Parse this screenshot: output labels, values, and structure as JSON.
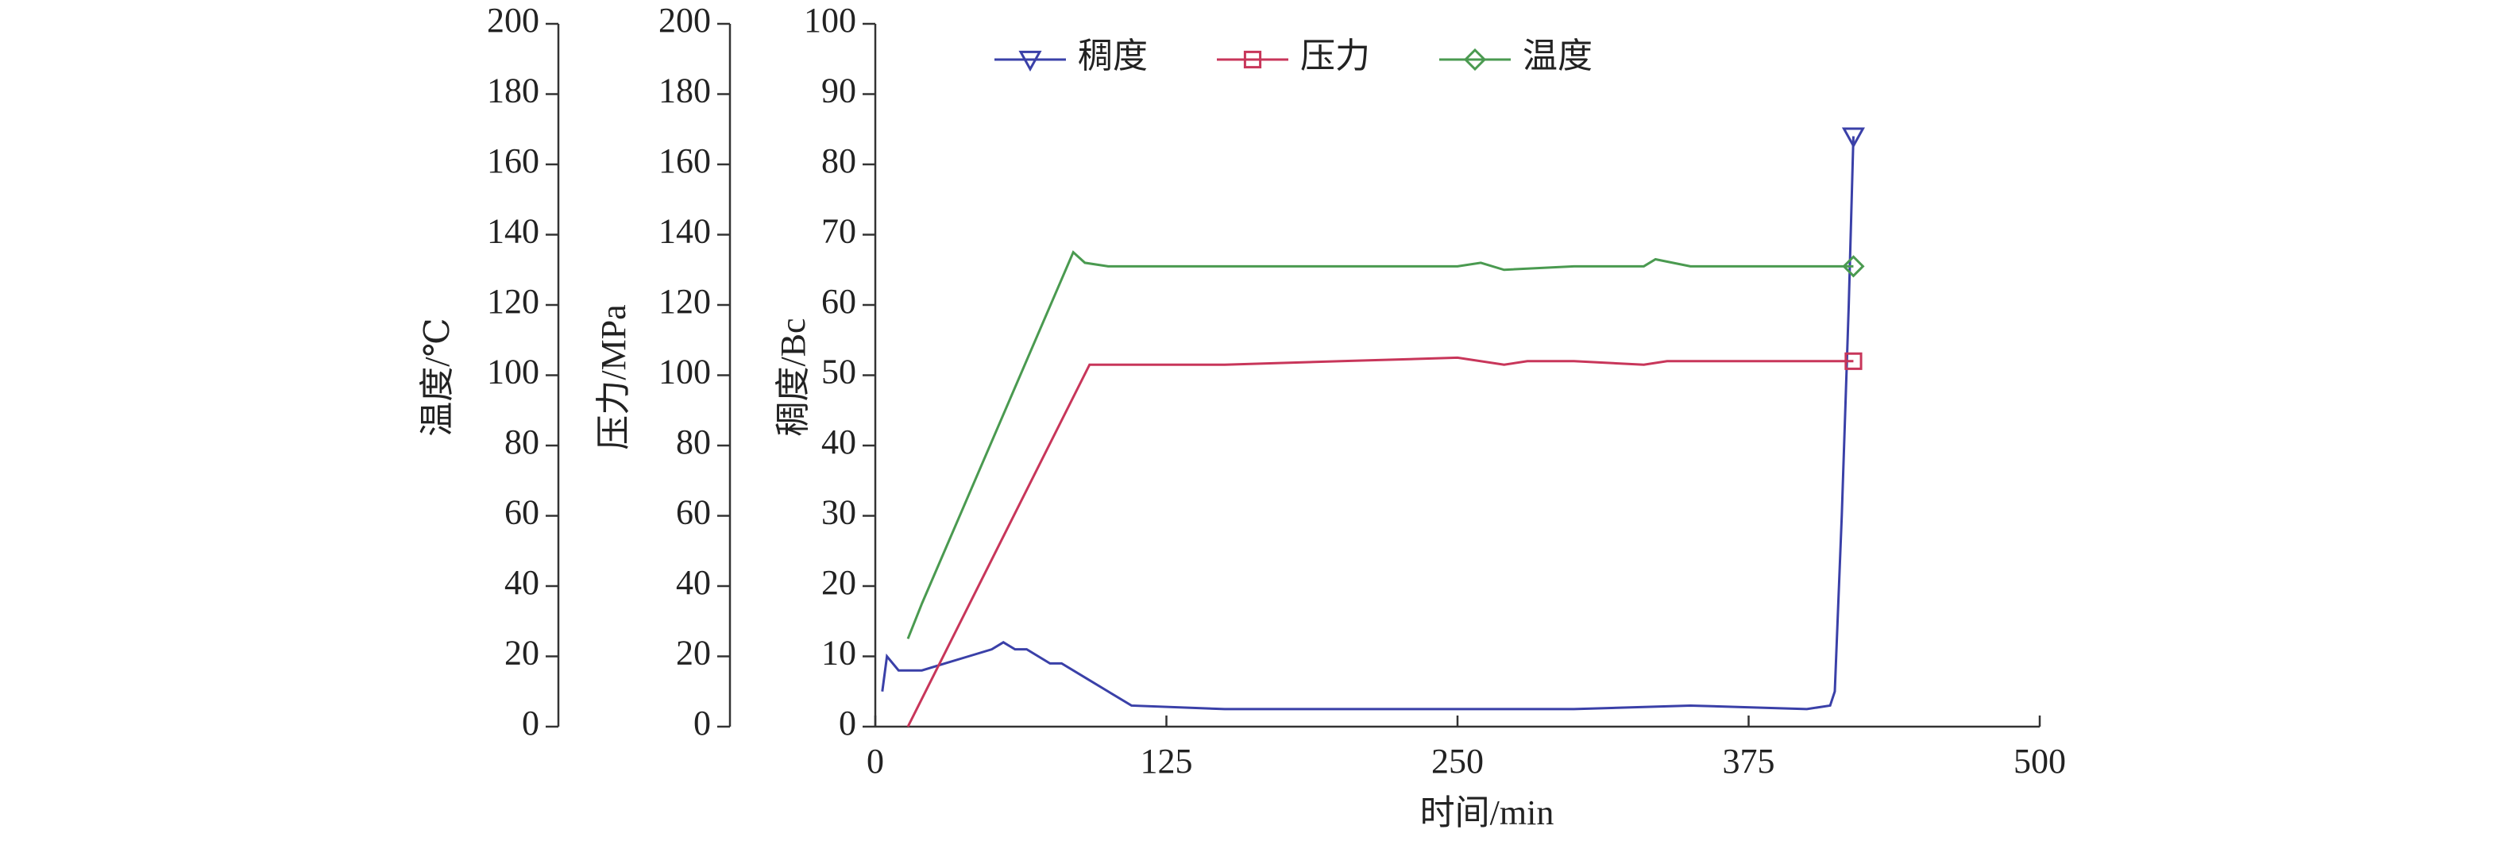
{
  "chart_data": {
    "type": "line",
    "xlabel": "时间/min",
    "ylabel": "稠度/Bc",
    "y2label": "压力/MPa",
    "y3label": "温度/℃",
    "xlim": [
      0,
      500
    ],
    "xticks": [
      0,
      125,
      250,
      375,
      500
    ],
    "ylim": [
      0,
      100
    ],
    "yticks": [
      0,
      10,
      20,
      30,
      40,
      50,
      60,
      70,
      80,
      90,
      100
    ],
    "y2lim": [
      0,
      200
    ],
    "y2ticks": [
      0,
      20,
      40,
      60,
      80,
      100,
      120,
      140,
      160,
      180,
      200
    ],
    "y3lim": [
      0,
      200
    ],
    "y3ticks": [
      0,
      20,
      40,
      60,
      80,
      100,
      120,
      140,
      160,
      180,
      200
    ],
    "legend": "top",
    "series": [
      {
        "name": "稠度",
        "color": "#3a40a8",
        "marker": "triangle",
        "axis": "y",
        "x": [
          3,
          5,
          10,
          20,
          30,
          40,
          50,
          55,
          60,
          65,
          70,
          75,
          80,
          90,
          100,
          110,
          150,
          200,
          250,
          300,
          350,
          400,
          410,
          412,
          415,
          418,
          420
        ],
        "values": [
          5,
          10,
          8,
          8,
          9,
          10,
          11,
          12,
          11,
          11,
          10,
          9,
          9,
          7,
          5,
          3,
          2.5,
          2.5,
          2.5,
          2.5,
          3,
          2.5,
          3,
          5,
          30,
          60,
          84
        ]
      },
      {
        "name": "压力",
        "color": "#c8365a",
        "marker": "square",
        "axis": "y2",
        "x": [
          14,
          92,
          100,
          150,
          200,
          250,
          270,
          280,
          300,
          330,
          340,
          380,
          420
        ],
        "values": [
          0,
          103,
          103,
          103,
          104,
          105,
          103,
          104,
          104,
          103,
          104,
          104,
          104
        ]
      },
      {
        "name": "温度",
        "color": "#4a9a50",
        "marker": "diamond",
        "axis": "y3",
        "x": [
          14,
          20,
          85,
          90,
          100,
          150,
          200,
          250,
          260,
          270,
          300,
          330,
          335,
          350,
          400,
          420
        ],
        "values": [
          25,
          35,
          135,
          132,
          131,
          131,
          131,
          131,
          132,
          130,
          131,
          131,
          133,
          131,
          131,
          131
        ]
      }
    ]
  }
}
